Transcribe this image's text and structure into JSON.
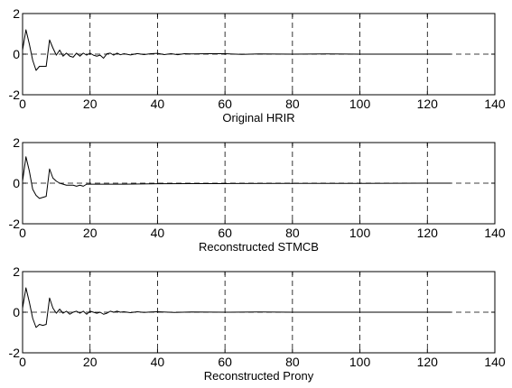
{
  "chart_data": [
    {
      "type": "line",
      "xlabel": "Original HRIR",
      "ylabel": "",
      "xlim": [
        0,
        140
      ],
      "ylim": [
        -2,
        2
      ],
      "xticks": [
        0,
        20,
        40,
        60,
        80,
        100,
        120,
        140
      ],
      "yticks": [
        -2,
        0,
        2
      ],
      "xtick_labels": [
        "0",
        "20",
        "40",
        "60",
        "80",
        "100",
        "120",
        "140"
      ],
      "ytick_labels": [
        "-2",
        "0",
        "2"
      ],
      "grid": "dashed",
      "series": [
        {
          "x": [
            0,
            1,
            2,
            3,
            4,
            5,
            6,
            7,
            8,
            9,
            10,
            11,
            12,
            13,
            14,
            15,
            16,
            17,
            18,
            19,
            20,
            21,
            22,
            23,
            24,
            25,
            26,
            27,
            28,
            29,
            30,
            32,
            34,
            36,
            38,
            40,
            42,
            44,
            46,
            48,
            50,
            55,
            60,
            65,
            70,
            80,
            90,
            100,
            110,
            120,
            127
          ],
          "y": [
            0.2,
            1.2,
            0.5,
            -0.3,
            -0.8,
            -0.6,
            -0.6,
            -0.6,
            0.7,
            0.3,
            -0.05,
            0.2,
            -0.1,
            0.05,
            -0.1,
            -0.15,
            0.05,
            -0.1,
            0.05,
            -0.05,
            0.05,
            -0.05,
            -0.1,
            -0.05,
            -0.2,
            0.02,
            0.05,
            -0.05,
            0.05,
            -0.03,
            0.02,
            -0.04,
            0.03,
            -0.02,
            0.02,
            0.04,
            -0.02,
            0.02,
            -0.03,
            0.02,
            0.01,
            0.02,
            0.02,
            -0.01,
            0.01,
            0.0,
            0.01,
            0.0,
            0.0,
            0.0,
            0.0
          ]
        }
      ]
    },
    {
      "type": "line",
      "xlabel": "Reconstructed STMCB",
      "ylabel": "",
      "xlim": [
        0,
        140
      ],
      "ylim": [
        -2,
        2
      ],
      "xticks": [
        0,
        20,
        40,
        60,
        80,
        100,
        120,
        140
      ],
      "yticks": [
        -2,
        0,
        2
      ],
      "xtick_labels": [
        "0",
        "20",
        "40",
        "60",
        "80",
        "100",
        "120",
        "140"
      ],
      "ytick_labels": [
        "-2",
        "0",
        "2"
      ],
      "grid": "dashed",
      "series": [
        {
          "x": [
            0,
            1,
            2,
            3,
            4,
            5,
            6,
            7,
            8,
            9,
            10,
            11,
            12,
            13,
            14,
            15,
            16,
            17,
            18,
            19,
            20,
            25,
            30,
            40,
            50,
            60,
            80,
            100,
            120,
            127
          ],
          "y": [
            0.1,
            1.3,
            0.6,
            -0.3,
            -0.6,
            -0.75,
            -0.7,
            -0.65,
            0.7,
            0.25,
            0.1,
            0.0,
            -0.05,
            -0.1,
            -0.1,
            -0.1,
            -0.15,
            -0.1,
            -0.15,
            -0.05,
            -0.05,
            -0.05,
            -0.05,
            -0.03,
            -0.02,
            -0.02,
            -0.01,
            -0.01,
            0.0,
            0.0
          ]
        }
      ]
    },
    {
      "type": "line",
      "xlabel": "Reconstructed Prony",
      "ylabel": "",
      "xlim": [
        0,
        140
      ],
      "ylim": [
        -2,
        2
      ],
      "xticks": [
        0,
        20,
        40,
        60,
        80,
        100,
        120,
        140
      ],
      "yticks": [
        -2,
        0,
        2
      ],
      "xtick_labels": [
        "0",
        "20",
        "40",
        "60",
        "80",
        "100",
        "120",
        "140"
      ],
      "ytick_labels": [
        "-2",
        "0",
        "2"
      ],
      "grid": "dashed",
      "series": [
        {
          "x": [
            0,
            1,
            2,
            3,
            4,
            5,
            6,
            7,
            8,
            9,
            10,
            11,
            12,
            13,
            14,
            15,
            16,
            17,
            18,
            19,
            20,
            21,
            22,
            23,
            24,
            25,
            26,
            27,
            28,
            29,
            30,
            32,
            34,
            36,
            38,
            40,
            45,
            50,
            60,
            70,
            80,
            90,
            100,
            110,
            120,
            127
          ],
          "y": [
            0.2,
            1.2,
            0.5,
            -0.3,
            -0.75,
            -0.6,
            -0.65,
            -0.6,
            0.7,
            0.2,
            -0.05,
            0.15,
            -0.05,
            0.05,
            -0.1,
            0.0,
            0.05,
            -0.05,
            0.05,
            -0.1,
            0.05,
            0.0,
            -0.05,
            0.0,
            -0.1,
            -0.05,
            0.05,
            0.0,
            0.05,
            0.0,
            0.02,
            -0.02,
            0.02,
            -0.01,
            0.01,
            0.02,
            -0.01,
            0.01,
            0.0,
            0.01,
            0.0,
            0.0,
            0.0,
            0.0,
            0.0,
            0.0
          ]
        }
      ]
    }
  ]
}
